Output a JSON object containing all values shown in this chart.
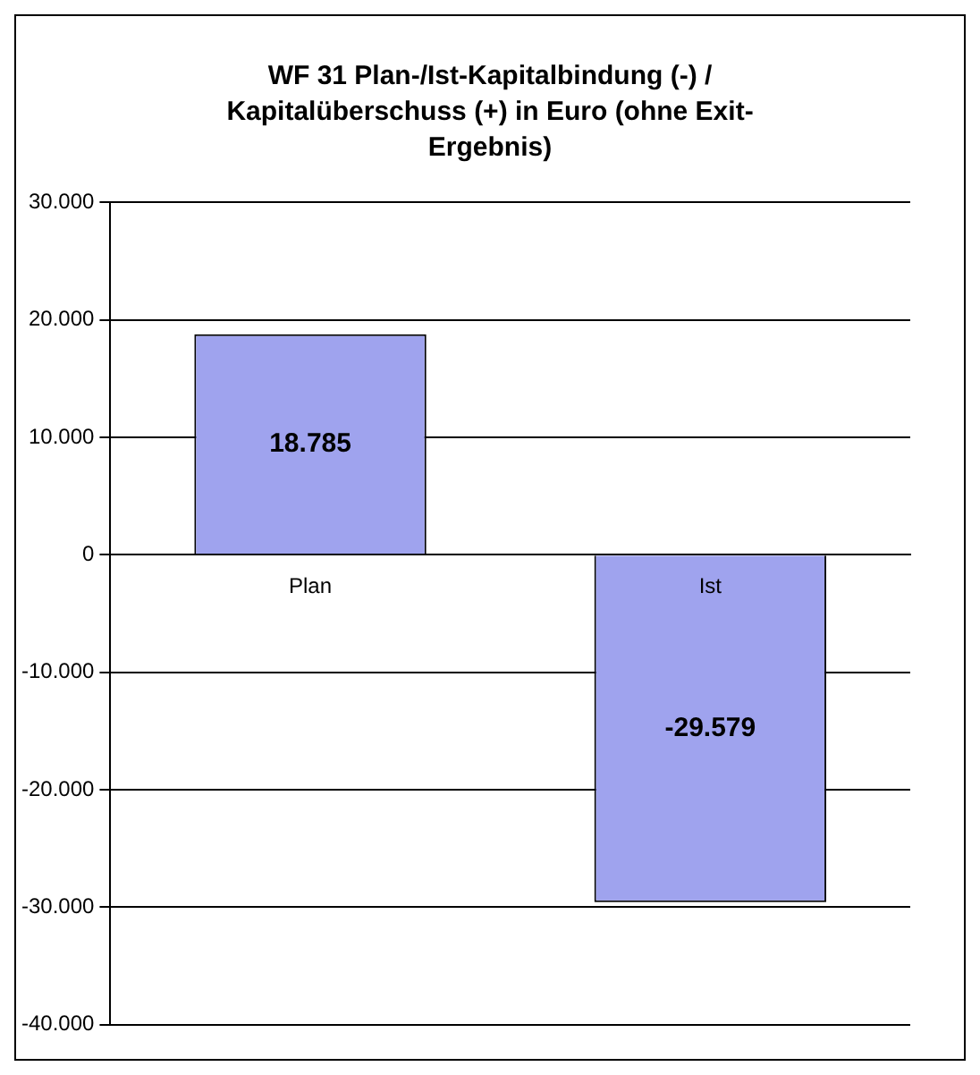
{
  "chart_data": {
    "type": "bar",
    "title": "WF 31 Plan-/Ist-Kapitalbindung (-) / Kapitalüberschuss (+) in Euro (ohne Exit-Ergebnis)",
    "categories": [
      "Plan",
      "Ist"
    ],
    "values": [
      18785,
      -29579
    ],
    "color": "#9fa3ee",
    "ylim": [
      -40000,
      30000
    ],
    "yticks": [
      {
        "value": -40000,
        "label": "-40.000"
      },
      {
        "value": -30000,
        "label": "-30.000"
      },
      {
        "value": -20000,
        "label": "-20.000"
      },
      {
        "value": -10000,
        "label": "-10.000"
      },
      {
        "value": 0,
        "label": "0"
      },
      {
        "value": 10000,
        "label": "10.000"
      },
      {
        "value": 20000,
        "label": "20.000"
      },
      {
        "value": 30000,
        "label": "30.000"
      }
    ],
    "value_labels": [
      "18.785",
      "-29.579"
    ],
    "grid": "y",
    "legend": false
  }
}
